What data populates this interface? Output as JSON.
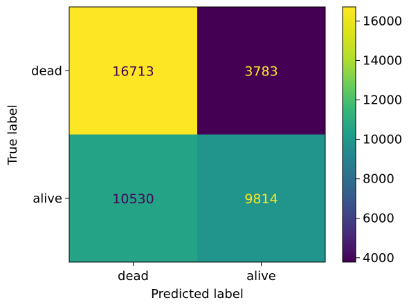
{
  "chart_data": {
    "type": "heatmap",
    "title": "",
    "xlabel": "Predicted label",
    "ylabel": "True label",
    "x_categories": [
      "dead",
      "alive"
    ],
    "y_categories": [
      "dead",
      "alive"
    ],
    "values": [
      [
        16713,
        3783
      ],
      [
        10530,
        9814
      ]
    ],
    "colormap": "viridis",
    "colorbar": {
      "min": 3783,
      "max": 16713,
      "ticks": [
        4000,
        6000,
        8000,
        10000,
        12000,
        14000,
        16000
      ],
      "tick_labels": [
        "4000",
        "6000",
        "8000",
        "10000",
        "12000",
        "14000",
        "16000"
      ]
    },
    "text_colors": {
      "dark": "#440154",
      "light": "#fde725"
    },
    "grid": false
  }
}
